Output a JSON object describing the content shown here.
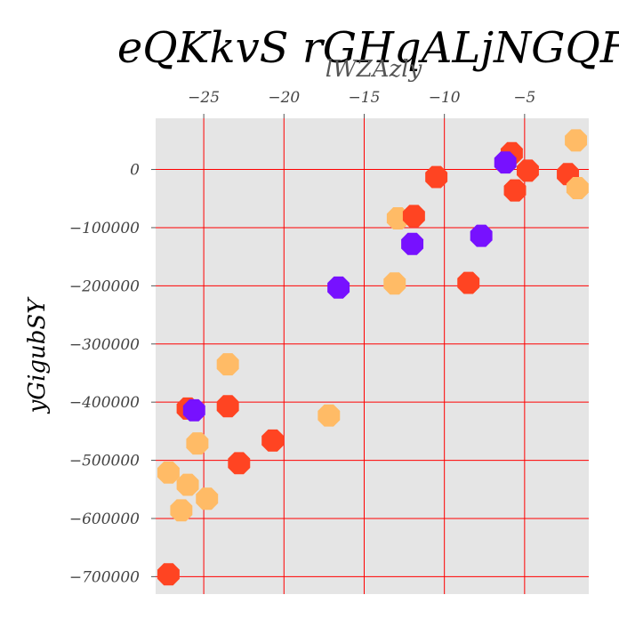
{
  "chart_data": {
    "type": "scatter",
    "title": "eQKkvS rGHqALjNGQF",
    "xlabel": "lWZAzly",
    "ylabel": "yGigubSY",
    "xlim": [
      -28.0,
      -1.0
    ],
    "ylim": [
      -730000,
      88000
    ],
    "x_axis_position": "top",
    "grid": true,
    "x_ticks": [
      -25,
      -20,
      -15,
      -10,
      -5
    ],
    "x_tick_labels": [
      "−25",
      "−20",
      "−15",
      "−10",
      "−5"
    ],
    "y_ticks": [
      0,
      -100000,
      -200000,
      -300000,
      -400000,
      -500000,
      -600000,
      -700000
    ],
    "y_tick_labels": [
      "0",
      "−100000",
      "−200000",
      "−300000",
      "−400000",
      "−500000",
      "−600000",
      "−700000"
    ],
    "colors": {
      "background": "#e5e5e5",
      "grid": "#ff0000",
      "red": "#ff4422",
      "purple": "#7711ff",
      "orange": "#ffbb66"
    },
    "points": [
      {
        "x": -1.8,
        "y": 50000,
        "color": "orange"
      },
      {
        "x": -5.8,
        "y": 28000,
        "color": "red"
      },
      {
        "x": -4.8,
        "y": -2000,
        "color": "red"
      },
      {
        "x": -2.3,
        "y": -8000,
        "color": "red"
      },
      {
        "x": -10.5,
        "y": -13000,
        "color": "red"
      },
      {
        "x": -6.2,
        "y": 12000,
        "color": "purple"
      },
      {
        "x": -1.7,
        "y": -32000,
        "color": "orange"
      },
      {
        "x": -5.6,
        "y": -36000,
        "color": "red"
      },
      {
        "x": -12.9,
        "y": -84000,
        "color": "orange"
      },
      {
        "x": -11.9,
        "y": -80000,
        "color": "red"
      },
      {
        "x": -7.7,
        "y": -114000,
        "color": "purple"
      },
      {
        "x": -12.0,
        "y": -128000,
        "color": "purple"
      },
      {
        "x": -13.1,
        "y": -196000,
        "color": "orange"
      },
      {
        "x": -8.5,
        "y": -195000,
        "color": "red"
      },
      {
        "x": -16.6,
        "y": -203000,
        "color": "purple"
      },
      {
        "x": -23.5,
        "y": -335000,
        "color": "orange"
      },
      {
        "x": -26.0,
        "y": -411000,
        "color": "red"
      },
      {
        "x": -25.6,
        "y": -414000,
        "color": "purple"
      },
      {
        "x": -23.5,
        "y": -407000,
        "color": "red"
      },
      {
        "x": -17.2,
        "y": -423000,
        "color": "orange"
      },
      {
        "x": -20.7,
        "y": -466000,
        "color": "red"
      },
      {
        "x": -25.4,
        "y": -471000,
        "color": "orange"
      },
      {
        "x": -22.8,
        "y": -505000,
        "color": "red"
      },
      {
        "x": -27.2,
        "y": -521000,
        "color": "orange"
      },
      {
        "x": -26.0,
        "y": -542000,
        "color": "orange"
      },
      {
        "x": -24.8,
        "y": -566000,
        "color": "orange"
      },
      {
        "x": -26.4,
        "y": -586000,
        "color": "orange"
      },
      {
        "x": -27.2,
        "y": -696000,
        "color": "red"
      }
    ]
  }
}
